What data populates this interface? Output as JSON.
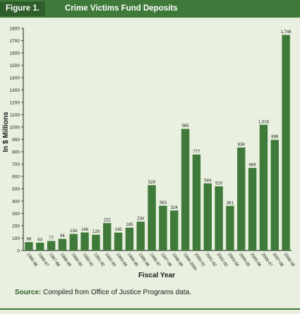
{
  "figure": {
    "label": "Figure 1.",
    "title": "Crime Victims Fund Deposits"
  },
  "source": {
    "label": "Source:",
    "text": "Compiled from Office of Justice Programs data."
  },
  "colors": {
    "bar": "#3f7a3a",
    "header": "#3f7a3a",
    "panel": "#e9f0df"
  },
  "chart_data": {
    "type": "bar",
    "title": "",
    "xlabel": "Fiscal Year",
    "ylabel": "In $ Millions",
    "ylim": [
      0,
      1800
    ],
    "yticks": [
      0,
      100,
      200,
      300,
      400,
      500,
      600,
      700,
      800,
      900,
      1000,
      1100,
      1200,
      1300,
      1400,
      1500,
      1600,
      1700,
      1800
    ],
    "grid": false,
    "categories": [
      "1985-86",
      "1986-87",
      "1987-88",
      "1988-89",
      "1989-90",
      "1990-91",
      "1991-92",
      "1992-93",
      "1993-94",
      "1994-95",
      "1995-96",
      "1996-97",
      "1997-98",
      "1998-99",
      "1999-2000",
      "2000-01",
      "2001-02",
      "2002-03",
      "2003-04",
      "2004-05",
      "2005-06",
      "2006-07",
      "2007-08",
      "2008-09"
    ],
    "values": [
      68,
      63,
      77,
      94,
      134,
      146,
      128,
      222,
      145,
      185,
      234,
      529,
      363,
      324,
      985,
      777,
      544,
      520,
      361,
      834,
      669,
      1018,
      896,
      1746
    ],
    "value_labels": [
      "68",
      "63",
      "77",
      "94",
      "134",
      "146",
      "128",
      "222",
      "145",
      "185",
      "234",
      "529",
      "363",
      "324",
      "985",
      "777",
      "544",
      "520",
      "361",
      "834",
      "669",
      "1,018",
      "896",
      "1,746"
    ]
  }
}
